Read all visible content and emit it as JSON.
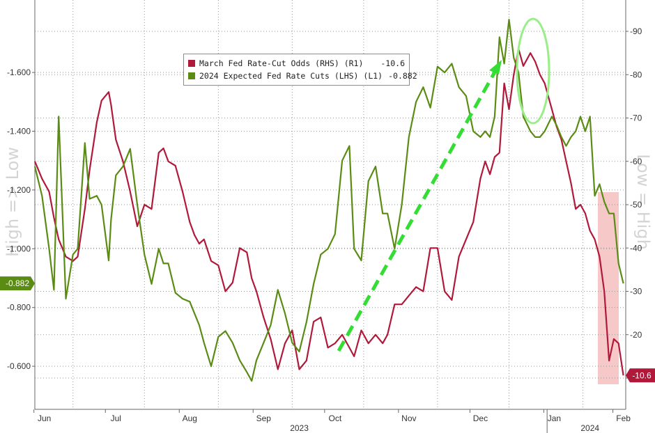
{
  "colors": {
    "march_odds": "#b0193a",
    "expected_cuts": "#5a8c14",
    "trend_arrow": "#33dd33",
    "highlight_ellipse": "#99ee88",
    "shade": "#f4b6b6",
    "left_badge": "#5a8c14",
    "right_badge": "#b0193a",
    "grid": "#999999"
  },
  "legend": {
    "items": [
      {
        "label": "March Fed Rate-Cut Odds (RHS) (R1)",
        "value": "-10.6"
      },
      {
        "label": "2024 Expected Fed Rate Cuts (LHS) (L1)",
        "value": "-0.882"
      }
    ]
  },
  "annotations": {
    "left_axis_text": "High => Low",
    "right_axis_text": "Low = High",
    "left_badge": "-0.882",
    "right_badge": "-10.6"
  },
  "chart_data": {
    "type": "line",
    "x_axis": {
      "months": [
        "Jun",
        "Jul",
        "Aug",
        "Sep",
        "Oct",
        "Nov",
        "Dec",
        "Jan",
        "Feb"
      ],
      "years": [
        "2023",
        "2024"
      ],
      "range": [
        "2023-05-30",
        "2024-02-02"
      ]
    },
    "left_axis": {
      "inverted": true,
      "range": [
        -0.53,
        -1.78
      ],
      "ticks": [
        "-0.600",
        "-0.800",
        "-1.000",
        "-1.200",
        "-1.400",
        "-1.600"
      ]
    },
    "right_axis": {
      "inverted": true,
      "range": [
        -6,
        -94
      ],
      "ticks": [
        "-10",
        "-20",
        "-30",
        "-40",
        "-50",
        "-60",
        "-70",
        "-80",
        "-90"
      ]
    },
    "grid": true,
    "legend_position": "top-center",
    "series": [
      {
        "name": "March Fed Rate-Cut Odds (RHS) (R1)",
        "axis": "right",
        "x": [
          "2023-05-30",
          "2023-06-02",
          "2023-06-05",
          "2023-06-07",
          "2023-06-09",
          "2023-06-12",
          "2023-06-15",
          "2023-06-17",
          "2023-06-20",
          "2023-06-22",
          "2023-06-25",
          "2023-06-27",
          "2023-06-30",
          "2023-07-01",
          "2023-07-03",
          "2023-07-06",
          "2023-07-09",
          "2023-07-12",
          "2023-07-15",
          "2023-07-18",
          "2023-07-21",
          "2023-07-23",
          "2023-07-25",
          "2023-07-28",
          "2023-07-31",
          "2023-08-03",
          "2023-08-05",
          "2023-08-07",
          "2023-08-09",
          "2023-08-12",
          "2023-08-15",
          "2023-08-18",
          "2023-08-21",
          "2023-08-24",
          "2023-08-27",
          "2023-08-29",
          "2023-08-31",
          "2023-09-03",
          "2023-09-06",
          "2023-09-09",
          "2023-09-12",
          "2023-09-15",
          "2023-09-18",
          "2023-09-21",
          "2023-09-24",
          "2023-09-27",
          "2023-09-30",
          "2023-10-03",
          "2023-10-06",
          "2023-10-09",
          "2023-10-11",
          "2023-10-14",
          "2023-10-17",
          "2023-10-20",
          "2023-10-23",
          "2023-10-25",
          "2023-10-28",
          "2023-10-31",
          "2023-11-03",
          "2023-11-06",
          "2023-11-09",
          "2023-11-12",
          "2023-11-15",
          "2023-11-18",
          "2023-11-21",
          "2023-11-24",
          "2023-11-27",
          "2023-11-30",
          "2023-12-03",
          "2023-12-05",
          "2023-12-07",
          "2023-12-09",
          "2023-12-11",
          "2023-12-13",
          "2023-12-15",
          "2023-12-17",
          "2023-12-19",
          "2023-12-21",
          "2023-12-24",
          "2023-12-26",
          "2023-12-28",
          "2023-12-30",
          "2024-01-02",
          "2024-01-04",
          "2024-01-06",
          "2024-01-08",
          "2024-01-10",
          "2024-01-12",
          "2024-01-14",
          "2024-01-16",
          "2024-01-18",
          "2024-01-20",
          "2024-01-22",
          "2024-01-24",
          "2024-01-26",
          "2024-01-28",
          "2024-01-30",
          "2024-02-01"
        ],
        "y": [
          -60,
          -56,
          -53,
          -47,
          -42,
          -38,
          -37,
          -38,
          -49,
          -58,
          -69,
          -74,
          -76,
          -73,
          -65,
          -60,
          -53,
          -45,
          -50,
          -49,
          -62,
          -63,
          -60,
          -59,
          -53,
          -46,
          -43,
          -41,
          -42,
          -37,
          -36,
          -30,
          -32,
          -40,
          -39,
          -33,
          -30,
          -24,
          -19,
          -12,
          -18,
          -21,
          -12,
          -14,
          -23,
          -24,
          -17,
          -18,
          -20,
          -17,
          -15,
          -21,
          -18,
          -20,
          -18,
          -20,
          -27,
          -27,
          -29,
          -31,
          -30,
          -40,
          -40,
          -30,
          -28,
          -38,
          -42,
          -46,
          -56,
          -60,
          -57,
          -61,
          -62,
          -78,
          -72,
          -80,
          -86,
          -82,
          -85,
          -83,
          -80,
          -78,
          -72,
          -68,
          -65,
          -60,
          -55,
          -49,
          -50,
          -48,
          -44,
          -42,
          -38,
          -30,
          -14,
          -19,
          -18,
          -10.6
        ]
      },
      {
        "name": "2024 Expected Fed Rate Cuts (LHS) (L1)",
        "axis": "left",
        "x": [
          "2023-05-30",
          "2023-06-02",
          "2023-06-05",
          "2023-06-07",
          "2023-06-09",
          "2023-06-12",
          "2023-06-15",
          "2023-06-17",
          "2023-06-20",
          "2023-06-22",
          "2023-06-25",
          "2023-06-27",
          "2023-06-30",
          "2023-07-01",
          "2023-07-03",
          "2023-07-06",
          "2023-07-09",
          "2023-07-12",
          "2023-07-15",
          "2023-07-18",
          "2023-07-21",
          "2023-07-23",
          "2023-07-25",
          "2023-07-28",
          "2023-07-31",
          "2023-08-03",
          "2023-08-05",
          "2023-08-07",
          "2023-08-09",
          "2023-08-12",
          "2023-08-15",
          "2023-08-18",
          "2023-08-21",
          "2023-08-24",
          "2023-08-27",
          "2023-08-29",
          "2023-08-31",
          "2023-09-03",
          "2023-09-06",
          "2023-09-09",
          "2023-09-12",
          "2023-09-15",
          "2023-09-18",
          "2023-09-21",
          "2023-09-24",
          "2023-09-27",
          "2023-09-30",
          "2023-10-03",
          "2023-10-06",
          "2023-10-09",
          "2023-10-11",
          "2023-10-14",
          "2023-10-17",
          "2023-10-20",
          "2023-10-23",
          "2023-10-25",
          "2023-10-28",
          "2023-10-31",
          "2023-11-03",
          "2023-11-06",
          "2023-11-09",
          "2023-11-12",
          "2023-11-15",
          "2023-11-18",
          "2023-11-21",
          "2023-11-24",
          "2023-11-27",
          "2023-11-30",
          "2023-12-03",
          "2023-12-05",
          "2023-12-07",
          "2023-12-09",
          "2023-12-11",
          "2023-12-13",
          "2023-12-15",
          "2023-12-17",
          "2023-12-19",
          "2023-12-21",
          "2023-12-24",
          "2023-12-26",
          "2023-12-28",
          "2023-12-30",
          "2024-01-02",
          "2024-01-04",
          "2024-01-06",
          "2024-01-08",
          "2024-01-10",
          "2024-01-12",
          "2024-01-14",
          "2024-01-16",
          "2024-01-18",
          "2024-01-20",
          "2024-01-22",
          "2024-01-24",
          "2024-01-26",
          "2024-01-28",
          "2024-01-30",
          "2024-02-01"
        ],
        "y": [
          -1.28,
          -1.18,
          -1.0,
          -0.86,
          -1.45,
          -0.83,
          -0.98,
          -1.0,
          -1.36,
          -1.17,
          -1.18,
          -1.15,
          -0.96,
          -1.1,
          -1.25,
          -1.28,
          -1.34,
          -1.15,
          -0.98,
          -0.88,
          -1.0,
          -0.95,
          -0.95,
          -0.85,
          -0.83,
          -0.82,
          -0.78,
          -0.74,
          -0.68,
          -0.6,
          -0.7,
          -0.72,
          -0.68,
          -0.62,
          -0.58,
          -0.55,
          -0.62,
          -0.68,
          -0.74,
          -0.86,
          -0.78,
          -0.68,
          -0.65,
          -0.75,
          -0.88,
          -0.98,
          -1.0,
          -1.05,
          -1.3,
          -1.35,
          -1.0,
          -0.96,
          -1.23,
          -1.28,
          -1.12,
          -1.12,
          -1.0,
          -1.15,
          -1.38,
          -1.5,
          -1.55,
          -1.48,
          -1.62,
          -1.6,
          -1.63,
          -1.55,
          -1.52,
          -1.4,
          -1.38,
          -1.4,
          -1.38,
          -1.45,
          -1.72,
          -1.63,
          -1.78,
          -1.65,
          -1.6,
          -1.45,
          -1.4,
          -1.38,
          -1.38,
          -1.4,
          -1.45,
          -1.42,
          -1.38,
          -1.35,
          -1.38,
          -1.4,
          -1.45,
          -1.4,
          -1.45,
          -1.18,
          -1.22,
          -1.16,
          -1.12,
          -1.12,
          -0.95,
          -0.882
        ]
      }
    ]
  }
}
